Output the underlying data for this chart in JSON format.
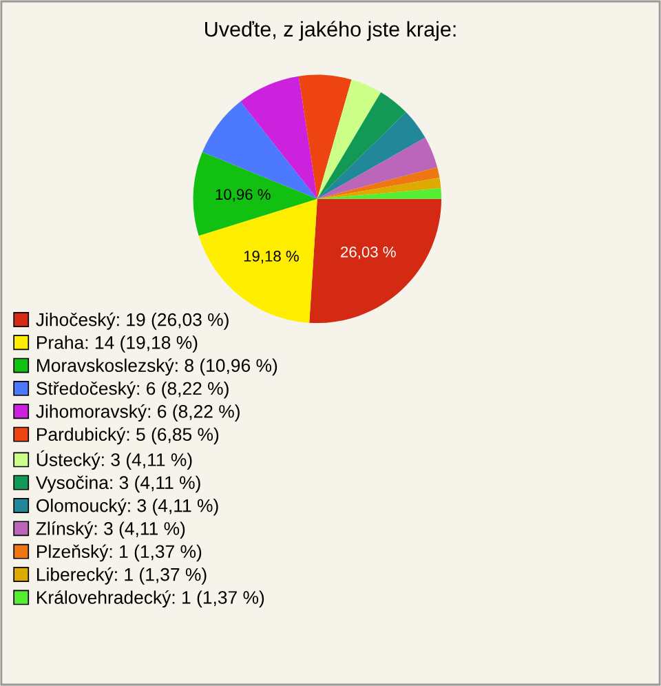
{
  "chart_data": {
    "type": "pie",
    "title": "Uveďte, z jakého jste kraje:",
    "categories": [
      "Jihočeský: 19 (26,03 %)",
      "Praha: 14 (19,18 %)",
      "Moravskoslezský: 8 (10,96 %)",
      "Středočeský: 6 (8,22 %)",
      "Jihomoravský: 6 (8,22 %)",
      "Pardubický: 5 (6,85 %)",
      "Ústecký: 3 (4,11 %)",
      "Vysočina: 3 (4,11 %)",
      "Olomoucký: 3 (4,11 %)",
      "Zlínský: 3 (4,11 %)",
      "Plzeňský: 1 (1,37 %)",
      "Liberecký: 1 (1,37 %)",
      "Královehradecký: 1 (1,37 %)"
    ],
    "values": [
      26.03,
      19.18,
      10.96,
      8.22,
      8.22,
      6.85,
      4.11,
      4.11,
      4.11,
      4.11,
      1.37,
      1.37,
      1.37
    ],
    "colors": [
      "#d42a14",
      "#ffee00",
      "#11c011",
      "#4d79ff",
      "#cc22dd",
      "#ee4411",
      "#ccff88",
      "#119955",
      "#228899",
      "#bb66bb",
      "#ee7711",
      "#ddaa00",
      "#55ee33"
    ],
    "value_labels": [
      "26,03 %",
      "19,18 %",
      "10,96 %",
      null,
      null,
      null,
      null,
      null,
      null,
      null,
      null,
      null,
      null
    ],
    "legend": "bottom left"
  }
}
